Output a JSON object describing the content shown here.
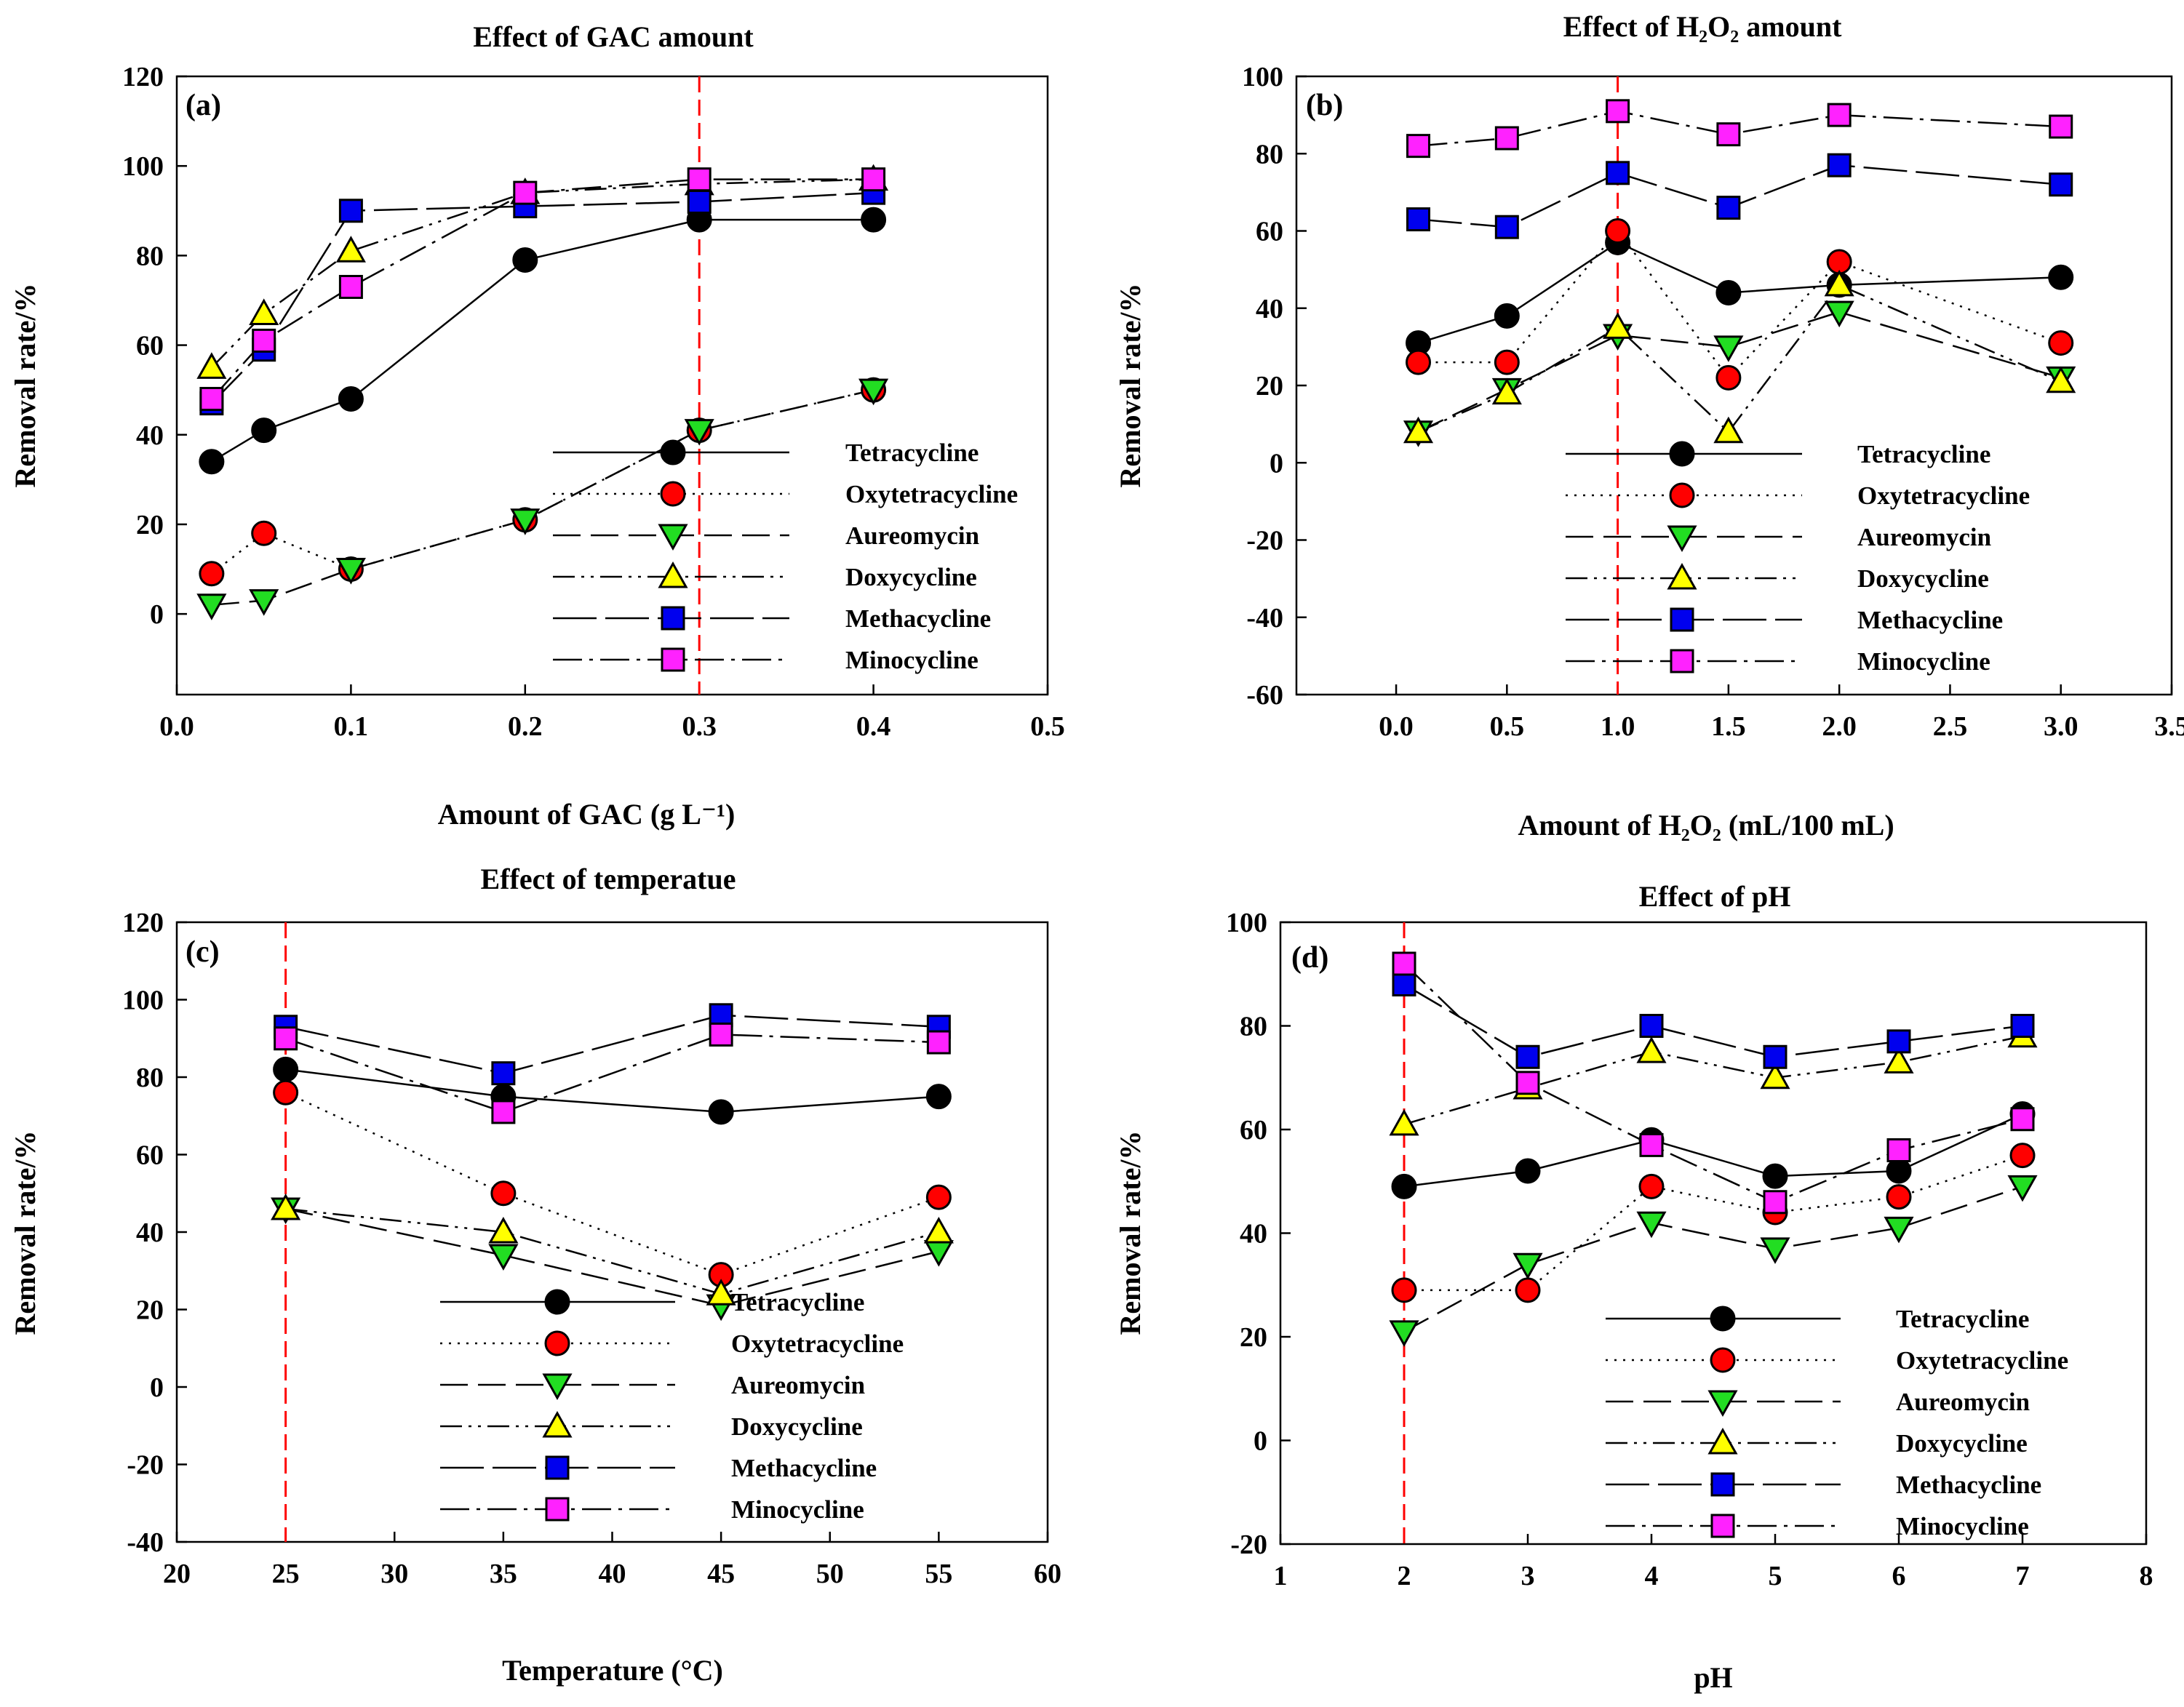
{
  "series_styles": [
    {
      "name": "Tetracycline",
      "marker": "circle",
      "fill": "#000000",
      "dash": ""
    },
    {
      "name": "Oxytetracycline",
      "marker": "circle",
      "fill": "#ff0000",
      "dash": "3,9"
    },
    {
      "name": "Aureomycin",
      "marker": "triangle-down",
      "fill": "#22dd22",
      "dash": "38,14"
    },
    {
      "name": "Doxycycline",
      "marker": "triangle-up",
      "fill": "#ffff00",
      "dash": "30,9,4,9,4,9"
    },
    {
      "name": "Methacycline",
      "marker": "square",
      "fill": "#0000ee",
      "dash": "60,12"
    },
    {
      "name": "Minocycline",
      "marker": "square",
      "fill": "#ff22ff",
      "dash": "40,10,5,10"
    }
  ],
  "chart_data": [
    {
      "type": "line",
      "panel_tag": "(a)",
      "title": "Effect of  GAC amount",
      "xlabel": "Amount of GAC (g L⁻¹)",
      "ylabel": "Removal rate/%",
      "xlim": [
        0.0,
        0.5
      ],
      "ylim": [
        -18,
        120
      ],
      "xticks": [
        0.0,
        0.1,
        0.2,
        0.3,
        0.4,
        0.5
      ],
      "xtick_labels": [
        "0.0",
        "0.1",
        "0.2",
        "0.3",
        "0.4",
        "0.5"
      ],
      "yticks": [
        0,
        20,
        40,
        60,
        80,
        100,
        120
      ],
      "ytick_labels": [
        "0",
        "20",
        "40",
        "60",
        "80",
        "100",
        "120"
      ],
      "x": [
        0.02,
        0.05,
        0.1,
        0.2,
        0.3,
        0.4
      ],
      "ref_line_x": 0.3,
      "legend_position": "lower-right",
      "series": [
        {
          "name": "Tetracycline",
          "values": [
            34,
            41,
            48,
            79,
            88,
            88
          ]
        },
        {
          "name": "Oxytetracycline",
          "values": [
            9,
            18,
            10,
            21,
            41,
            50
          ]
        },
        {
          "name": "Aureomycin",
          "values": [
            2,
            3,
            10,
            21,
            41,
            50
          ]
        },
        {
          "name": "Doxycycline",
          "values": [
            55,
            67,
            81,
            94,
            96,
            97
          ]
        },
        {
          "name": "Methacycline",
          "values": [
            47,
            59,
            90,
            91,
            92,
            94
          ]
        },
        {
          "name": "Minocycline",
          "values": [
            48,
            61,
            73,
            94,
            97,
            97
          ]
        }
      ]
    },
    {
      "type": "line",
      "panel_tag": "(b)",
      "title": "Effect of  H₂O₂ amount",
      "xlabel": "Amount of H₂O₂ (mL/100 mL)",
      "ylabel": "Removal rate/%",
      "xlim": [
        -0.45,
        3.5
      ],
      "ylim": [
        -60,
        100
      ],
      "xticks": [
        0.0,
        0.5,
        1.0,
        1.5,
        2.0,
        2.5,
        3.0,
        3.5
      ],
      "xtick_labels": [
        "0.0",
        "0.5",
        "1.0",
        "1.5",
        "2.0",
        "2.5",
        "3.0",
        "3.5"
      ],
      "yticks": [
        -60,
        -40,
        -20,
        0,
        20,
        40,
        60,
        80,
        100
      ],
      "ytick_labels": [
        "-60",
        "-40",
        "-20",
        "0",
        "20",
        "40",
        "60",
        "80",
        "100"
      ],
      "x": [
        0.1,
        0.5,
        1.0,
        1.5,
        2.0,
        3.0
      ],
      "ref_line_x": 1.0,
      "legend_position": "lower-right",
      "series": [
        {
          "name": "Tetracycline",
          "values": [
            31,
            38,
            57,
            44,
            46,
            48
          ]
        },
        {
          "name": "Oxytetracycline",
          "values": [
            26,
            26,
            60,
            22,
            52,
            31
          ]
        },
        {
          "name": "Aureomycin",
          "values": [
            8,
            19,
            33,
            30,
            39,
            22
          ]
        },
        {
          "name": "Doxycycline",
          "values": [
            8,
            18,
            35,
            8,
            46,
            21
          ]
        },
        {
          "name": "Methacycline",
          "values": [
            63,
            61,
            75,
            66,
            77,
            72
          ]
        },
        {
          "name": "Minocycline",
          "values": [
            82,
            84,
            91,
            85,
            90,
            87
          ]
        }
      ]
    },
    {
      "type": "line",
      "panel_tag": "(c)",
      "title": "Effect of temperatue",
      "xlabel": "Temperature (°C)",
      "ylabel": "Removal rate/%",
      "xlim": [
        20,
        60
      ],
      "ylim": [
        -40,
        120
      ],
      "xticks": [
        20,
        25,
        30,
        35,
        40,
        45,
        50,
        55,
        60
      ],
      "xtick_labels": [
        "20",
        "25",
        "30",
        "35",
        "40",
        "45",
        "50",
        "55",
        "60"
      ],
      "yticks": [
        -40,
        -20,
        0,
        20,
        40,
        60,
        80,
        100,
        120
      ],
      "ytick_labels": [
        "-40",
        "-20",
        "0",
        "20",
        "40",
        "60",
        "80",
        "100",
        "120"
      ],
      "x": [
        25,
        35,
        45,
        55
      ],
      "ref_line_x": 25,
      "legend_position": "lower-right",
      "series": [
        {
          "name": "Tetracycline",
          "values": [
            82,
            75,
            71,
            75
          ]
        },
        {
          "name": "Oxytetracycline",
          "values": [
            76,
            50,
            29,
            49
          ]
        },
        {
          "name": "Aureomycin",
          "values": [
            46,
            34,
            21,
            35
          ]
        },
        {
          "name": "Doxycycline",
          "values": [
            46,
            40,
            24,
            40
          ]
        },
        {
          "name": "Methacycline",
          "values": [
            93,
            81,
            96,
            93
          ]
        },
        {
          "name": "Minocycline",
          "values": [
            90,
            71,
            91,
            89
          ]
        }
      ]
    },
    {
      "type": "line",
      "panel_tag": "(d)",
      "title": "Effect of pH",
      "xlabel": "pH",
      "ylabel": "Removal rate/%",
      "xlim": [
        1,
        8
      ],
      "ylim": [
        -20,
        100
      ],
      "xticks": [
        1,
        2,
        3,
        4,
        5,
        6,
        7,
        8
      ],
      "xtick_labels": [
        "1",
        "2",
        "3",
        "4",
        "5",
        "6",
        "7",
        "8"
      ],
      "yticks": [
        -20,
        0,
        20,
        40,
        60,
        80,
        100
      ],
      "ytick_labels": [
        "-20",
        "0",
        "20",
        "40",
        "60",
        "80",
        "100"
      ],
      "x": [
        2,
        3,
        4,
        5,
        6,
        7
      ],
      "ref_line_x": 2,
      "legend_position": "lower-right",
      "series": [
        {
          "name": "Tetracycline",
          "values": [
            49,
            52,
            58,
            51,
            52,
            63
          ]
        },
        {
          "name": "Oxytetracycline",
          "values": [
            29,
            29,
            49,
            44,
            47,
            55
          ]
        },
        {
          "name": "Aureomycin",
          "values": [
            21,
            34,
            42,
            37,
            41,
            49
          ]
        },
        {
          "name": "Doxycycline",
          "values": [
            61,
            68,
            75,
            70,
            73,
            78
          ]
        },
        {
          "name": "Methacycline",
          "values": [
            88,
            74,
            80,
            74,
            77,
            80
          ]
        },
        {
          "name": "Minocycline",
          "values": [
            92,
            69,
            57,
            46,
            56,
            62
          ]
        }
      ]
    }
  ]
}
